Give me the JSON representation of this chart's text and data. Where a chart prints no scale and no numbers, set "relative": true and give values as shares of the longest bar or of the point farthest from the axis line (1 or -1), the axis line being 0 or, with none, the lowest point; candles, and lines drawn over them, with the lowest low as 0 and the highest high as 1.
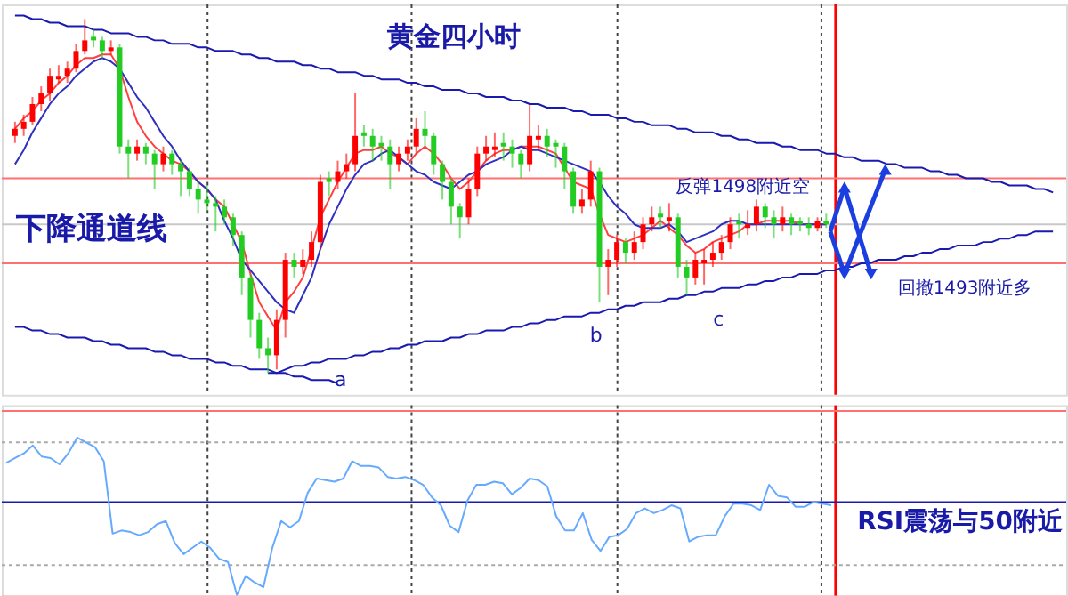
{
  "chart_data": [
    {
      "type": "candlestick",
      "title": "黄金四小时",
      "relative": true,
      "tick_labels": false,
      "categories": [
        null,
        null,
        null,
        null,
        null,
        null,
        null,
        null,
        null,
        null,
        null,
        null,
        null,
        null,
        null,
        null,
        null,
        null,
        null,
        null,
        null,
        null,
        null,
        null,
        null,
        null,
        null,
        null,
        null,
        null,
        null,
        null,
        null,
        null,
        null,
        null,
        null,
        null,
        null,
        null,
        null,
        null,
        null,
        null,
        null,
        null,
        null,
        null,
        null,
        null,
        null,
        null,
        null,
        null,
        null,
        null,
        null,
        null,
        null,
        null,
        null,
        null,
        null,
        null,
        null,
        null,
        null,
        null,
        null,
        null,
        null,
        null,
        null,
        null,
        null,
        null,
        null,
        null,
        null,
        null,
        null,
        null,
        null,
        null,
        null,
        null,
        null,
        null,
        null,
        null,
        null,
        null,
        null,
        null,
        null,
        null,
        null,
        null,
        null,
        null,
        null,
        null,
        null,
        null,
        null,
        null,
        null,
        null,
        null,
        null,
        null,
        null,
        null,
        null,
        null,
        null,
        null,
        null,
        null,
        null
      ],
      "ohlc": [
        [
          0.67,
          0.71,
          0.65,
          0.69
        ],
        [
          0.69,
          0.73,
          0.67,
          0.71
        ],
        [
          0.71,
          0.78,
          0.7,
          0.76
        ],
        [
          0.76,
          0.81,
          0.74,
          0.79
        ],
        [
          0.79,
          0.86,
          0.77,
          0.84
        ],
        [
          0.83,
          0.87,
          0.82,
          0.84
        ],
        [
          0.84,
          0.88,
          0.82,
          0.86
        ],
        [
          0.86,
          0.93,
          0.85,
          0.91
        ],
        [
          0.91,
          1.0,
          0.9,
          0.94
        ],
        [
          0.95,
          0.97,
          0.92,
          0.94
        ],
        [
          0.94,
          0.95,
          0.89,
          0.91
        ],
        [
          0.91,
          0.94,
          0.9,
          0.92
        ],
        [
          0.92,
          0.93,
          0.62,
          0.64
        ],
        [
          0.64,
          0.66,
          0.55,
          0.62
        ],
        [
          0.62,
          0.66,
          0.6,
          0.64
        ],
        [
          0.64,
          0.65,
          0.59,
          0.62
        ],
        [
          0.62,
          0.63,
          0.52,
          0.59
        ],
        [
          0.59,
          0.64,
          0.57,
          0.62
        ],
        [
          0.62,
          0.63,
          0.56,
          0.59
        ],
        [
          0.59,
          0.6,
          0.5,
          0.57
        ],
        [
          0.57,
          0.58,
          0.5,
          0.52
        ],
        [
          0.52,
          0.54,
          0.45,
          0.49
        ],
        [
          0.49,
          0.53,
          0.46,
          0.48
        ],
        [
          0.48,
          0.5,
          0.4,
          0.47
        ],
        [
          0.47,
          0.49,
          0.42,
          0.44
        ],
        [
          0.44,
          0.45,
          0.36,
          0.39
        ],
        [
          0.39,
          0.4,
          0.22,
          0.27
        ],
        [
          0.27,
          0.28,
          0.1,
          0.15
        ],
        [
          0.15,
          0.17,
          0.04,
          0.07
        ],
        [
          0.07,
          0.1,
          0.0,
          0.05
        ],
        [
          0.05,
          0.18,
          0.01,
          0.15
        ],
        [
          0.15,
          0.34,
          0.1,
          0.32
        ],
        [
          0.32,
          0.34,
          0.27,
          0.3
        ],
        [
          0.3,
          0.35,
          0.28,
          0.32
        ],
        [
          0.32,
          0.4,
          0.3,
          0.37
        ],
        [
          0.37,
          0.56,
          0.35,
          0.54
        ],
        [
          0.55,
          0.57,
          0.5,
          0.54
        ],
        [
          0.54,
          0.6,
          0.52,
          0.57
        ],
        [
          0.57,
          0.62,
          0.55,
          0.59
        ],
        [
          0.59,
          0.79,
          0.57,
          0.67
        ],
        [
          0.68,
          0.7,
          0.64,
          0.67
        ],
        [
          0.67,
          0.69,
          0.6,
          0.64
        ],
        [
          0.65,
          0.67,
          0.6,
          0.64
        ],
        [
          0.64,
          0.66,
          0.52,
          0.59
        ],
        [
          0.59,
          0.64,
          0.57,
          0.62
        ],
        [
          0.62,
          0.66,
          0.6,
          0.64
        ],
        [
          0.64,
          0.72,
          0.62,
          0.69
        ],
        [
          0.69,
          0.74,
          0.64,
          0.67
        ],
        [
          0.67,
          0.68,
          0.56,
          0.59
        ],
        [
          0.59,
          0.6,
          0.49,
          0.54
        ],
        [
          0.54,
          0.55,
          0.42,
          0.47
        ],
        [
          0.47,
          0.48,
          0.38,
          0.44
        ],
        [
          0.44,
          0.55,
          0.42,
          0.52
        ],
        [
          0.52,
          0.64,
          0.5,
          0.62
        ],
        [
          0.62,
          0.67,
          0.6,
          0.64
        ],
        [
          0.63,
          0.68,
          0.61,
          0.64
        ],
        [
          0.65,
          0.68,
          0.6,
          0.64
        ],
        [
          0.64,
          0.66,
          0.58,
          0.62
        ],
        [
          0.62,
          0.63,
          0.55,
          0.59
        ],
        [
          0.59,
          0.76,
          0.57,
          0.67
        ],
        [
          0.66,
          0.7,
          0.63,
          0.67
        ],
        [
          0.67,
          0.69,
          0.61,
          0.64
        ],
        [
          0.65,
          0.66,
          0.58,
          0.64
        ],
        [
          0.64,
          0.65,
          0.52,
          0.57
        ],
        [
          0.57,
          0.58,
          0.45,
          0.47
        ],
        [
          0.47,
          0.52,
          0.45,
          0.49
        ],
        [
          0.49,
          0.6,
          0.47,
          0.57
        ],
        [
          0.57,
          0.58,
          0.2,
          0.3
        ],
        [
          0.3,
          0.35,
          0.22,
          0.32
        ],
        [
          0.32,
          0.39,
          0.3,
          0.37
        ],
        [
          0.37,
          0.38,
          0.31,
          0.34
        ],
        [
          0.34,
          0.4,
          0.32,
          0.37
        ],
        [
          0.37,
          0.44,
          0.35,
          0.42
        ],
        [
          0.42,
          0.47,
          0.4,
          0.44
        ],
        [
          0.45,
          0.47,
          0.41,
          0.44
        ],
        [
          0.43,
          0.48,
          0.4,
          0.44
        ],
        [
          0.44,
          0.45,
          0.27,
          0.3
        ],
        [
          0.3,
          0.32,
          0.22,
          0.27
        ],
        [
          0.27,
          0.34,
          0.25,
          0.32
        ],
        [
          0.31,
          0.35,
          0.25,
          0.32
        ],
        [
          0.32,
          0.37,
          0.3,
          0.34
        ],
        [
          0.34,
          0.39,
          0.32,
          0.37
        ],
        [
          0.37,
          0.44,
          0.35,
          0.42
        ],
        [
          0.43,
          0.45,
          0.38,
          0.42
        ],
        [
          0.41,
          0.46,
          0.39,
          0.42
        ],
        [
          0.42,
          0.49,
          0.4,
          0.47
        ],
        [
          0.47,
          0.48,
          0.41,
          0.44
        ],
        [
          0.44,
          0.46,
          0.38,
          0.42
        ],
        [
          0.42,
          0.47,
          0.4,
          0.44
        ],
        [
          0.44,
          0.45,
          0.39,
          0.42
        ],
        [
          0.43,
          0.44,
          0.4,
          0.42
        ],
        [
          0.42,
          0.44,
          0.39,
          0.41
        ],
        [
          0.41,
          0.44,
          0.4,
          0.43
        ],
        [
          0.43,
          0.45,
          0.41,
          0.42
        ],
        null,
        null,
        null,
        null,
        null,
        null,
        null,
        null,
        null,
        null,
        null,
        null,
        null,
        null,
        null,
        null,
        null,
        null,
        null,
        null,
        null,
        null,
        null,
        null,
        null,
        null
      ],
      "colors": [
        "#ff0000",
        "#ff0000",
        "#ff0000",
        "#ff0000",
        "#ff0000",
        "#ff0000",
        "#ff0000",
        "#ff0000",
        "#ff0000",
        "#22cc22",
        "#22cc22",
        "#ff0000",
        "#22cc22",
        "#22cc22",
        "#ff0000",
        "#22cc22",
        "#22cc22",
        "#ff0000",
        "#22cc22",
        "#22cc22",
        "#22cc22",
        "#22cc22",
        "#22cc22",
        "#22cc22",
        "#22cc22",
        "#22cc22",
        "#22cc22",
        "#22cc22",
        "#22cc22",
        "#22cc22",
        "#ff0000",
        "#ff0000",
        "#22cc22",
        "#ff0000",
        "#ff0000",
        "#ff0000",
        "#22cc22",
        "#ff0000",
        "#ff0000",
        "#ff0000",
        "#22cc22",
        "#22cc22",
        "#22cc22",
        "#22cc22",
        "#ff0000",
        "#ff0000",
        "#ff0000",
        "#22cc22",
        "#22cc22",
        "#22cc22",
        "#22cc22",
        "#22cc22",
        "#ff0000",
        "#ff0000",
        "#ff0000",
        "#ff0000",
        "#22cc22",
        "#22cc22",
        "#22cc22",
        "#ff0000",
        "#ff0000",
        "#22cc22",
        "#22cc22",
        "#22cc22",
        "#22cc22",
        "#ff0000",
        "#ff0000",
        "#22cc22",
        "#ff0000",
        "#ff0000",
        "#22cc22",
        "#ff0000",
        "#ff0000",
        "#ff0000",
        "#22cc22",
        "#ff0000",
        "#22cc22",
        "#22cc22",
        "#ff0000",
        "#ff0000",
        "#ff0000",
        "#ff0000",
        "#ff0000",
        "#22cc22",
        "#ff0000",
        "#ff0000",
        "#22cc22",
        "#22cc22",
        "#ff0000",
        "#22cc22",
        "#22cc22",
        "#22cc22",
        "#ff0000",
        "#22cc22",
        null,
        null,
        null,
        null,
        null,
        null,
        null,
        null,
        null,
        null,
        null,
        null,
        null,
        null,
        null,
        null,
        null,
        null,
        null,
        null,
        null,
        null,
        null,
        null,
        null,
        null
      ],
      "series": [
        {
          "type": "line",
          "color": "#ff4040",
          "values": [
            0.69,
            0.72,
            0.74,
            0.77,
            0.79,
            0.82,
            0.84,
            0.87,
            0.89,
            0.89,
            0.9,
            0.9,
            0.86,
            0.78,
            0.71,
            0.67,
            0.64,
            0.62,
            0.6,
            0.59,
            0.57,
            0.54,
            0.52,
            0.49,
            0.47,
            0.42,
            0.37,
            0.28,
            0.2,
            0.16,
            0.12,
            0.2,
            0.23,
            0.27,
            0.35,
            0.44,
            0.49,
            0.54,
            0.58,
            0.62,
            0.63,
            0.63,
            0.64,
            0.62,
            0.61,
            0.59,
            0.62,
            0.64,
            0.62,
            0.59,
            0.55,
            0.52,
            0.54,
            0.57,
            0.6,
            0.62,
            0.63,
            0.63,
            0.64,
            0.64,
            0.64,
            0.63,
            0.62,
            0.58,
            0.54,
            0.53,
            0.52,
            0.45,
            0.39,
            0.38,
            0.37,
            0.38,
            0.39,
            0.41,
            0.43,
            0.41,
            0.39,
            0.36,
            0.34,
            0.35,
            0.37,
            0.38,
            0.39,
            0.4,
            0.42,
            0.42,
            0.43,
            0.43,
            0.43,
            0.43,
            0.42,
            0.42,
            0.42,
            0.42,
            null,
            null,
            null,
            null,
            null,
            null,
            null,
            null,
            null,
            null,
            null,
            null,
            null,
            null,
            null,
            null,
            null,
            null,
            null,
            null,
            null,
            null,
            null,
            null,
            null,
            null
          ]
        },
        {
          "type": "line",
          "color": "#3030c0",
          "values": [
            0.59,
            0.63,
            0.68,
            0.72,
            0.76,
            0.79,
            0.81,
            0.84,
            0.86,
            0.88,
            0.89,
            0.88,
            0.86,
            0.82,
            0.78,
            0.75,
            0.71,
            0.67,
            0.64,
            0.6,
            0.57,
            0.54,
            0.52,
            0.49,
            0.43,
            0.38,
            0.32,
            0.29,
            0.26,
            0.23,
            0.2,
            0.18,
            0.17,
            0.22,
            0.27,
            0.35,
            0.42,
            0.47,
            0.52,
            0.56,
            0.59,
            0.6,
            0.62,
            0.63,
            0.61,
            0.59,
            0.57,
            0.56,
            0.54,
            0.53,
            0.52,
            0.54,
            0.56,
            0.57,
            0.59,
            0.6,
            0.61,
            0.63,
            0.64,
            0.63,
            0.63,
            0.62,
            0.61,
            0.6,
            0.59,
            0.58,
            0.57,
            0.54,
            0.5,
            0.47,
            0.45,
            0.42,
            0.41,
            0.41,
            0.41,
            0.42,
            0.4,
            0.37,
            0.38,
            0.39,
            0.4,
            0.42,
            0.43,
            0.43,
            0.42,
            0.42,
            0.42,
            0.42,
            0.42,
            0.42,
            0.42,
            0.42,
            0.42,
            0.42,
            null,
            null,
            null,
            null,
            null,
            null,
            null,
            null,
            null,
            null,
            null,
            null,
            null,
            null,
            null,
            null,
            null,
            null,
            null,
            null,
            null,
            null,
            null,
            null,
            null,
            null
          ]
        },
        {
          "type": "line",
          "color": "#1a1ab0",
          "values": [
            1.01,
            1.01,
            1.0,
            1.0,
            0.99,
            0.99,
            0.98,
            0.98,
            0.98,
            0.97,
            0.97,
            0.96,
            0.96,
            0.96,
            0.95,
            0.95,
            0.94,
            0.94,
            0.93,
            0.93,
            0.93,
            0.92,
            0.92,
            0.91,
            0.91,
            0.91,
            0.9,
            0.9,
            0.89,
            0.89,
            0.88,
            0.88,
            0.88,
            0.87,
            0.87,
            0.86,
            0.86,
            0.85,
            0.85,
            0.85,
            0.84,
            0.84,
            0.83,
            0.83,
            0.83,
            0.82,
            0.82,
            0.81,
            0.81,
            0.8,
            0.8,
            0.8,
            0.79,
            0.79,
            0.78,
            0.78,
            0.78,
            0.77,
            0.77,
            0.76,
            0.76,
            0.75,
            0.75,
            0.75,
            0.74,
            0.74,
            0.73,
            0.73,
            0.73,
            0.72,
            0.72,
            0.71,
            0.71,
            0.7,
            0.7,
            0.7,
            0.69,
            0.69,
            0.68,
            0.68,
            0.68,
            0.67,
            0.67,
            0.66,
            0.66,
            0.65,
            0.65,
            0.65,
            0.64,
            0.64,
            0.63,
            0.63,
            0.63,
            0.62,
            0.62,
            0.61,
            0.61,
            0.6,
            0.6,
            0.6,
            0.59,
            0.59,
            0.58,
            0.58,
            0.58,
            0.57,
            0.57,
            0.56,
            0.56,
            0.55,
            0.55,
            0.55,
            0.54,
            0.54,
            0.53,
            0.53,
            0.53,
            0.52,
            0.52,
            0.51
          ]
        },
        {
          "type": "line",
          "color": "#1a1ab0",
          "values": [
            0.13,
            0.13,
            0.12,
            0.12,
            0.11,
            0.11,
            0.1,
            0.1,
            0.1,
            0.09,
            0.09,
            0.08,
            0.08,
            0.07,
            0.07,
            0.07,
            0.06,
            0.06,
            0.05,
            0.05,
            0.04,
            0.04,
            0.04,
            0.03,
            0.03,
            0.02,
            0.02,
            0.01,
            0.01,
            0.01,
            0.0,
            0.0,
            -0.01,
            -0.01,
            -0.02,
            -0.02,
            -0.02,
            -0.03,
            null,
            null,
            null,
            null,
            null,
            null,
            null,
            null,
            null,
            null,
            null,
            null,
            null,
            null,
            null,
            null,
            null,
            null,
            null,
            null,
            null,
            null,
            null,
            null,
            null,
            null,
            null,
            null,
            null,
            null,
            null,
            null,
            null,
            null,
            null,
            null,
            null,
            null,
            null,
            null,
            null,
            null,
            null,
            null,
            null,
            null,
            null,
            null,
            null,
            null,
            null,
            null,
            null,
            null,
            null,
            null,
            null,
            null,
            null,
            null,
            null,
            null,
            null,
            null,
            null,
            null,
            null,
            null,
            null,
            null,
            null,
            null,
            null,
            null,
            null,
            null,
            null,
            null,
            null,
            null,
            null,
            null
          ]
        },
        {
          "type": "line",
          "color": "#1a1ab0",
          "values": [
            null,
            null,
            null,
            null,
            null,
            null,
            null,
            null,
            null,
            null,
            null,
            null,
            null,
            null,
            null,
            null,
            null,
            null,
            null,
            null,
            null,
            null,
            null,
            null,
            null,
            null,
            null,
            null,
            null,
            0.0,
            0.0,
            0.01,
            0.02,
            0.02,
            0.03,
            0.03,
            0.04,
            0.04,
            0.04,
            0.05,
            0.05,
            0.06,
            0.06,
            0.07,
            0.07,
            0.08,
            0.08,
            0.09,
            0.09,
            0.09,
            0.1,
            0.1,
            0.11,
            0.11,
            0.12,
            0.12,
            0.12,
            0.13,
            0.13,
            0.14,
            0.14,
            0.15,
            0.15,
            0.16,
            0.16,
            0.16,
            0.17,
            0.17,
            0.18,
            0.18,
            0.19,
            0.19,
            0.2,
            0.2,
            0.2,
            0.21,
            0.21,
            0.22,
            0.22,
            0.23,
            0.23,
            0.24,
            0.24,
            0.24,
            0.25,
            0.25,
            0.26,
            0.26,
            0.27,
            0.27,
            0.28,
            0.28,
            0.28,
            0.29,
            0.29,
            0.3,
            0.3,
            0.31,
            0.31,
            0.32,
            0.32,
            0.32,
            0.33,
            0.33,
            0.34,
            0.34,
            0.35,
            0.35,
            0.36,
            0.36,
            0.36,
            0.37,
            0.37,
            0.38,
            0.38,
            0.39,
            0.39,
            0.4,
            0.4,
            0.4
          ]
        }
      ],
      "ref_lines": [
        {
          "axis": "y",
          "value": 0.55,
          "color": "#ff7070"
        },
        {
          "axis": "y",
          "value": 0.42,
          "color": "#c8c8c8"
        },
        {
          "axis": "y",
          "value": 0.31,
          "color": "#ff7070"
        }
      ],
      "grid": "x",
      "annotations": [
        "下降通道线",
        "反弹1498附近空",
        "回撤1493附近多",
        "a",
        "b",
        "c"
      ]
    },
    {
      "type": "line",
      "relative": true,
      "tick_labels": false,
      "categories": [
        null,
        null,
        null,
        null,
        null,
        null,
        null,
        null,
        null,
        null,
        null,
        null,
        null,
        null,
        null,
        null,
        null,
        null,
        null,
        null,
        null,
        null,
        null,
        null,
        null,
        null,
        null,
        null,
        null,
        null,
        null,
        null,
        null,
        null,
        null,
        null,
        null,
        null,
        null,
        null,
        null,
        null,
        null,
        null,
        null,
        null,
        null,
        null,
        null,
        null,
        null,
        null,
        null,
        null,
        null,
        null,
        null,
        null,
        null,
        null,
        null,
        null,
        null,
        null,
        null,
        null,
        null,
        null,
        null,
        null,
        null,
        null,
        null,
        null,
        null,
        null,
        null,
        null,
        null,
        null,
        null,
        null,
        null,
        null,
        null,
        null,
        null,
        null,
        null,
        null,
        null,
        null,
        null,
        null,
        null,
        null,
        null,
        null,
        null,
        null,
        null,
        null,
        null,
        null,
        null,
        null,
        null,
        null,
        null,
        null,
        null,
        null,
        null,
        null,
        null,
        null,
        null,
        null,
        null,
        null
      ],
      "series": [
        {
          "color": "#66aaff",
          "values": [
            0.84,
            0.87,
            0.9,
            0.95,
            0.88,
            0.87,
            0.83,
            0.9,
            1.0,
            0.97,
            0.94,
            0.85,
            0.39,
            0.41,
            0.4,
            0.38,
            0.4,
            0.45,
            0.47,
            0.33,
            0.26,
            0.3,
            0.34,
            0.3,
            0.23,
            0.21,
            0.0,
            0.12,
            0.08,
            0.05,
            0.3,
            0.47,
            0.43,
            0.47,
            0.65,
            0.74,
            0.73,
            0.72,
            0.74,
            0.85,
            0.82,
            0.82,
            0.81,
            0.75,
            0.74,
            0.75,
            0.73,
            0.7,
            0.62,
            0.57,
            0.44,
            0.4,
            0.6,
            0.7,
            0.7,
            0.72,
            0.71,
            0.64,
            0.68,
            0.74,
            0.73,
            0.69,
            0.5,
            0.41,
            0.41,
            0.52,
            0.35,
            0.28,
            0.37,
            0.38,
            0.42,
            0.52,
            0.55,
            0.52,
            0.54,
            0.57,
            0.55,
            0.34,
            0.37,
            0.38,
            0.38,
            0.5,
            0.58,
            0.58,
            0.57,
            0.54,
            0.7,
            0.63,
            0.62,
            0.56,
            0.56,
            0.59,
            0.58,
            0.57,
            null,
            null,
            null,
            null,
            null,
            null,
            null,
            null,
            null,
            null,
            null,
            null,
            null,
            null,
            null,
            null,
            null,
            null,
            null,
            null,
            null,
            null,
            null,
            null,
            null,
            null
          ]
        }
      ],
      "ref_lines": [
        {
          "axis": "y",
          "value": 1.17,
          "color": "#ff7070"
        },
        {
          "axis": "y",
          "value": 0.97,
          "color": "#aaaaaa",
          "line_style": "dotted"
        },
        {
          "axis": "y",
          "value": 0.59,
          "color": "#1a1ab0"
        },
        {
          "axis": "y",
          "value": 0.19,
          "color": "#aaaaaa",
          "line_style": "dotted"
        },
        {
          "axis": "y",
          "value": -0.01,
          "color": "#ff9999"
        }
      ],
      "grid": "x",
      "annotations": [
        "RSI震荡与50附近"
      ]
    }
  ]
}
